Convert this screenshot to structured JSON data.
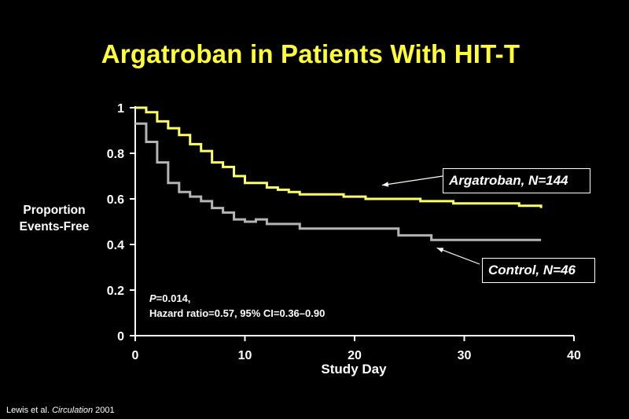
{
  "slide": {
    "citation": {
      "authors": "Lewis et al.",
      "journal": "Circulation",
      "year": "2001"
    }
  },
  "stats": {
    "p_label": "P",
    "p_value": "=0.014,",
    "hazard": "Hazard ratio=0.57, 95% CI=0.36–0.90"
  },
  "colors": {
    "background": "#000000",
    "title": "#ffff33",
    "argatroban_line": "#ffff66",
    "control_line": "#b4b4b4",
    "text": "#ffffff"
  },
  "chart_data": {
    "type": "line",
    "step": true,
    "title": "Argatroban in Patients With HIT-T",
    "xlabel": "Study Day",
    "ylabel_line1": "Proportion",
    "ylabel_line2": "Events-Free",
    "xlim": [
      0,
      40
    ],
    "ylim": [
      0,
      1
    ],
    "xticks": [
      0,
      10,
      20,
      30,
      40
    ],
    "yticks": [
      0,
      0.2,
      0.4,
      0.6,
      0.8,
      1
    ],
    "ytick_labels": [
      "0",
      "0.2",
      "0.4",
      "0.6",
      "0.8",
      "1"
    ],
    "grid": false,
    "series": [
      {
        "name": "Argatroban, N=144",
        "color": "#ffff66",
        "x": [
          0,
          1,
          2,
          3,
          4,
          5,
          6,
          7,
          8,
          9,
          10,
          12,
          13,
          14,
          15,
          17,
          19,
          21,
          23,
          26,
          28,
          29,
          31,
          33,
          35,
          36,
          37
        ],
        "y": [
          1.0,
          0.98,
          0.94,
          0.91,
          0.88,
          0.84,
          0.81,
          0.76,
          0.74,
          0.7,
          0.67,
          0.65,
          0.64,
          0.63,
          0.62,
          0.62,
          0.61,
          0.6,
          0.6,
          0.59,
          0.59,
          0.58,
          0.58,
          0.58,
          0.57,
          0.57,
          0.56
        ]
      },
      {
        "name": "Control, N=46",
        "color": "#b4b4b4",
        "x": [
          0,
          1,
          2,
          3,
          4,
          5,
          6,
          7,
          8,
          9,
          10,
          11,
          12,
          15,
          24,
          27,
          37
        ],
        "y": [
          0.93,
          0.85,
          0.76,
          0.67,
          0.63,
          0.61,
          0.59,
          0.56,
          0.54,
          0.51,
          0.5,
          0.51,
          0.49,
          0.47,
          0.44,
          0.42,
          0.42
        ]
      }
    ],
    "annotations": [
      {
        "series": 0,
        "label": "Argatroban, N=144",
        "arrow_to": [
          22.5,
          0.66
        ]
      },
      {
        "series": 1,
        "label": "Control, N=46",
        "arrow_to": [
          27.5,
          0.385
        ]
      }
    ]
  }
}
